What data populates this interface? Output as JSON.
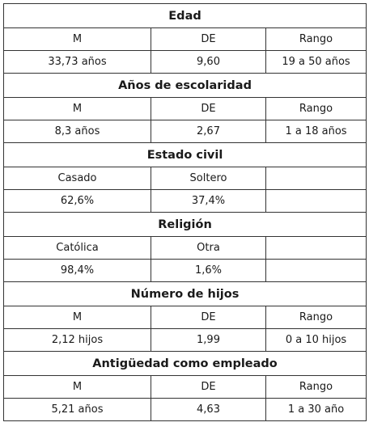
{
  "sections": [
    {
      "title": "Edad",
      "headers": [
        "M",
        "DE",
        "Rango"
      ],
      "values": [
        "33,73 años",
        "9,60",
        "19 a 50 años"
      ]
    },
    {
      "title": "Años de escolaridad",
      "headers": [
        "M",
        "DE",
        "Rango"
      ],
      "values": [
        "8,3 años",
        "2,67",
        "1 a 18 años"
      ]
    },
    {
      "title": "Estado civil",
      "headers": [
        "Casado",
        "Soltero",
        ""
      ],
      "values": [
        "62,6%",
        "37,4%",
        ""
      ]
    },
    {
      "title": "Religión",
      "headers": [
        "Católica",
        "Otra",
        ""
      ],
      "values": [
        "98,4%",
        "1,6%",
        ""
      ]
    },
    {
      "title": "Número de hijos",
      "headers": [
        "M",
        "DE",
        "Rango"
      ],
      "values": [
        "2,12 hijos",
        "1,99",
        "0 a 10 hijos"
      ]
    },
    {
      "title": "Antigüedad como empleado",
      "headers": [
        "M",
        "DE",
        "Rango"
      ],
      "values": [
        "5,21 años",
        "4,63",
        "1 a 30 año"
      ]
    }
  ]
}
